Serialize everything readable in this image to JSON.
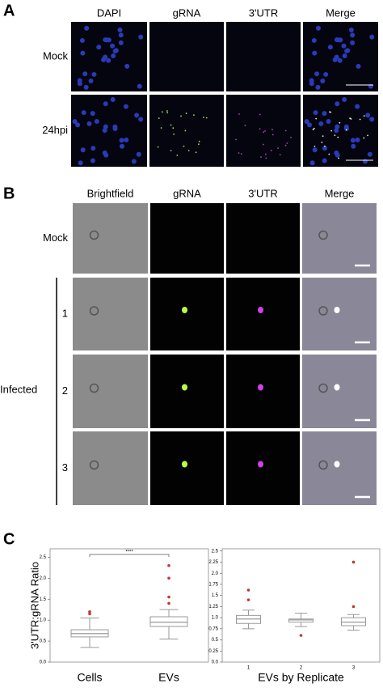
{
  "panel_a": {
    "label": "A",
    "columns": [
      "DAPI",
      "gRNA",
      "3'UTR",
      "Merge"
    ],
    "rows": [
      "Mock",
      "24hpi"
    ]
  },
  "panel_b": {
    "label": "B",
    "columns": [
      "Brightfield",
      "gRNA",
      "3'UTR",
      "Merge"
    ],
    "rows": [
      "Mock",
      "1",
      "2",
      "3"
    ],
    "group_label": "Infected"
  },
  "panel_c": {
    "label": "C"
  },
  "chart_data": [
    {
      "type": "box",
      "y_label": "3'UTR:gRNA Ratio",
      "categories": [
        "Cells",
        "EVs"
      ],
      "boxes": [
        {
          "min": 0.35,
          "q1": 0.6,
          "median": 0.68,
          "q3": 0.77,
          "max": 1.05,
          "outliers": [
            1.15,
            1.2
          ]
        },
        {
          "min": 0.55,
          "q1": 0.85,
          "median": 0.95,
          "q3": 1.08,
          "max": 1.25,
          "outliers": [
            1.4,
            1.55,
            2.0,
            2.3
          ]
        }
      ],
      "ylim": [
        0,
        2.7
      ],
      "yticks": [
        {
          "value": 0,
          "label": "0.0"
        },
        0.5,
        {
          "value": 1,
          "label": "1.0"
        },
        1.5,
        {
          "value": 2,
          "label": "2.0"
        },
        2.5
      ],
      "annotation": "****",
      "box_color": "#999999",
      "outlier_color": "#c0392b"
    },
    {
      "type": "box",
      "x_label": "EVs by Replicate",
      "categories": [
        "1",
        "2",
        "3"
      ],
      "boxes": [
        {
          "min": 0.75,
          "q1": 0.87,
          "median": 0.97,
          "q3": 1.05,
          "max": 1.17,
          "outliers": [
            1.4,
            1.62
          ]
        },
        {
          "min": 0.8,
          "q1": 0.9,
          "median": 0.95,
          "q3": 0.97,
          "max": 1.1,
          "outliers": [
            0.6
          ]
        },
        {
          "min": 0.72,
          "q1": 0.82,
          "median": 0.9,
          "q3": 1.0,
          "max": 1.07,
          "outliers": [
            1.25,
            2.25
          ]
        }
      ],
      "ylim": [
        0,
        2.55
      ],
      "yticks": [
        {
          "value": 0,
          "label": "0.0"
        },
        0.25,
        0.5,
        0.75,
        {
          "value": 1,
          "label": "1.0"
        },
        1.25,
        1.5,
        1.75,
        {
          "value": 2,
          "label": "2.0"
        },
        2.25,
        2.5
      ],
      "box_color": "#999999",
      "outlier_color": "#c0392b"
    }
  ]
}
